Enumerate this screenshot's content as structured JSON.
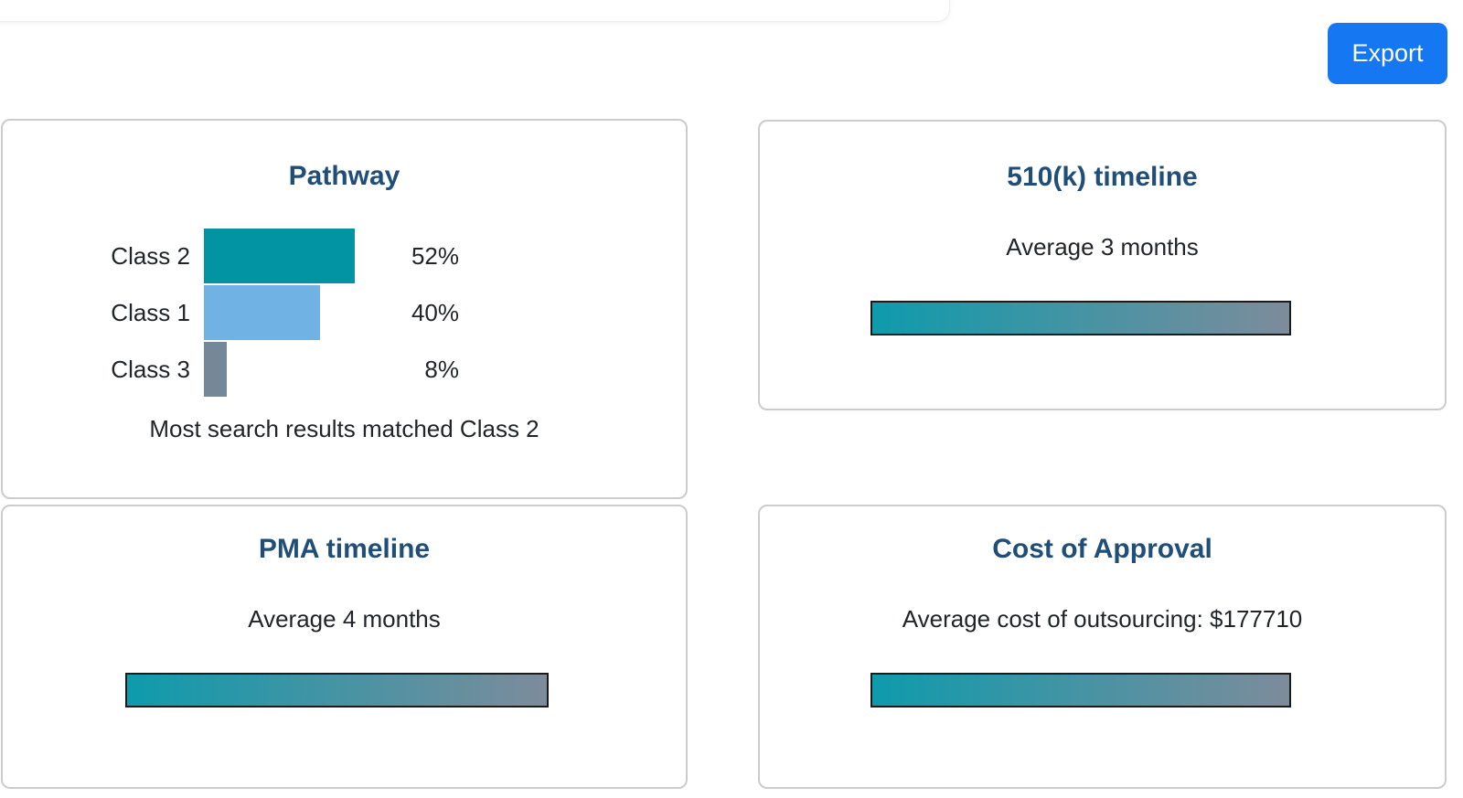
{
  "header": {
    "export_label": "Export"
  },
  "chart_data": [
    {
      "type": "bar",
      "orientation": "horizontal",
      "title": "Pathway",
      "categories": [
        "Class 2",
        "Class 1",
        "Class 3"
      ],
      "values": [
        52,
        40,
        8
      ],
      "value_labels": [
        "52%",
        "40%",
        "8%"
      ],
      "unit": "percent",
      "xlim": [
        0,
        100
      ],
      "colors": [
        "#0394a4",
        "#70b2e3",
        "#75889a"
      ],
      "annotation": "Most search results matched Class 2",
      "grid": false,
      "legend": false
    },
    {
      "type": "bar",
      "title": "510(k) timeline",
      "annotation": "Average 3 months",
      "values": [
        3
      ],
      "unit": "months"
    },
    {
      "type": "bar",
      "title": "PMA timeline",
      "annotation": "Average 4 months",
      "values": [
        4
      ],
      "unit": "months"
    },
    {
      "type": "bar",
      "title": "Cost of Approval",
      "annotation": "Average cost of outsourcing: $177710",
      "values": [
        177710
      ],
      "unit": "USD"
    }
  ],
  "theme": {
    "accent_blue": "#1577f2",
    "title_navy": "#1f4e79",
    "text_dark": "#212529",
    "card_border": "#cccccc",
    "gradient_start": "#0e9bac",
    "gradient_end": "#7d8c9b",
    "gradient_border": "#1b1b1b"
  }
}
